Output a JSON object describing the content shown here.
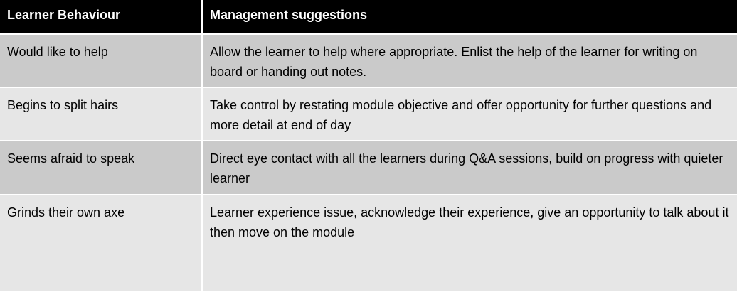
{
  "table": {
    "headers": [
      "Learner Behaviour",
      "Management suggestions"
    ],
    "rows": [
      {
        "behaviour": "Would like to help",
        "suggestion": "Allow the learner to help where appropriate. Enlist the help of the learner for writing on board or handing out notes."
      },
      {
        "behaviour": "Begins to split hairs",
        "suggestion": "Take control by restating module objective and offer opportunity for further questions and more detail at end of day"
      },
      {
        "behaviour": "Seems afraid to speak",
        "suggestion": "Direct eye contact with all the learners during Q&A sessions, build on progress with quieter learner"
      },
      {
        "behaviour": "Grinds their own axe",
        "suggestion": "Learner experience issue, acknowledge their experience, give an opportunity to talk about it then move on the module"
      }
    ]
  },
  "colors": {
    "header_bg": "#000000",
    "header_text": "#ffffff",
    "row_dark": "#cacaca",
    "row_light": "#e6e6e6"
  }
}
